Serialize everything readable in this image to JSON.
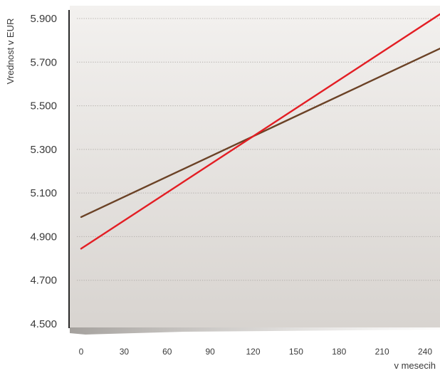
{
  "chart_data": {
    "type": "line",
    "title": "",
    "xlabel": "v mesecih",
    "ylabel": "Vrednost v EUR",
    "x_ticks": [
      "0",
      "30",
      "60",
      "90",
      "120",
      "150",
      "180",
      "210",
      "240"
    ],
    "y_ticks": [
      "4.500",
      "4.700",
      "4.900",
      "5.100",
      "5.300",
      "5.500",
      "5.700",
      "5.900"
    ],
    "xlim": [
      0,
      240
    ],
    "ylim": [
      4500,
      5900
    ],
    "grid": "horizontal dotted",
    "legend": "none",
    "series": [
      {
        "color": "#6b4226",
        "x": [
          0,
          240
        ],
        "y": [
          4990,
          5730
        ]
      },
      {
        "color": "#e31e24",
        "x": [
          0,
          240
        ],
        "y": [
          4845,
          5875
        ]
      }
    ]
  },
  "colors": {
    "plot_bg_top": "#f3f1ef",
    "plot_bg_bottom": "#d8d4d0",
    "grid": "#b0aca8",
    "axis": "#2a2a2a"
  }
}
